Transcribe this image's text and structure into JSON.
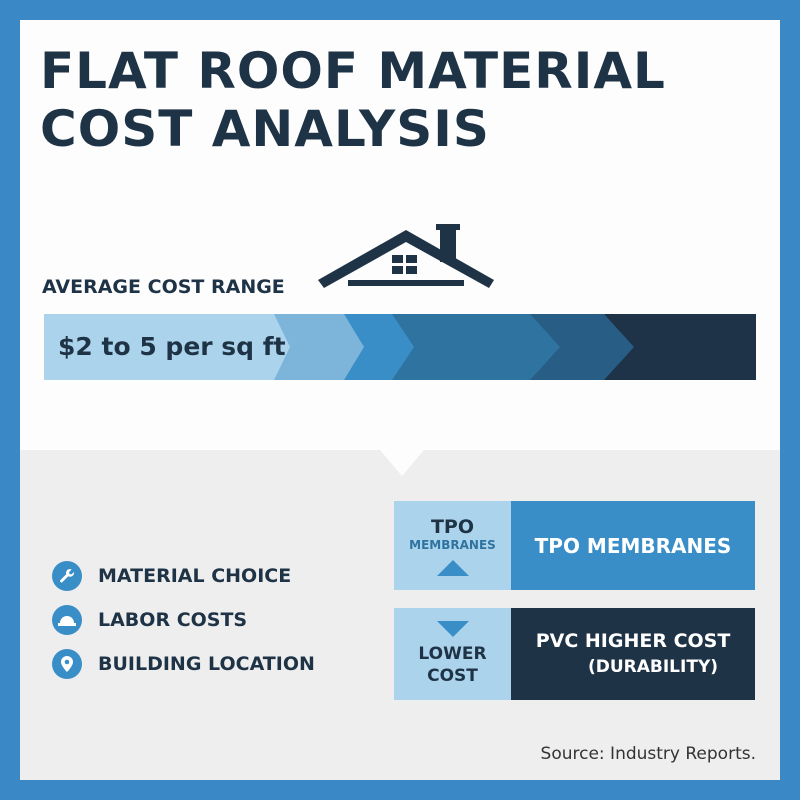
{
  "title": [
    "FLAT ROOF MATERIAL",
    "COST ANALYSIS"
  ],
  "average_cost": {
    "label": "AVERAGE COST RANGE",
    "value": "$2 to 5 per sq ft"
  },
  "factors": [
    {
      "icon": "wrench-icon",
      "label": "MATERIAL CHOICE"
    },
    {
      "icon": "hard-hat-icon",
      "label": "LABOR COSTS"
    },
    {
      "icon": "location-pin-icon",
      "label": "BUILDING LOCATION"
    }
  ],
  "comparison": {
    "tpo_side": [
      "TPO",
      "MEMBRANES"
    ],
    "tpo_main": "TPO MEMBRANES",
    "pvc_side": [
      "LOWER",
      "COST"
    ],
    "pvc_main": [
      "PVC HIGHER COST",
      "(DURABILITY)"
    ]
  },
  "source": "Source: Industry Reports.",
  "colors": {
    "frame": "#3a88c5",
    "dark": "#1f3347",
    "accent": "#3a8ec8",
    "light": "#acd3ec"
  }
}
